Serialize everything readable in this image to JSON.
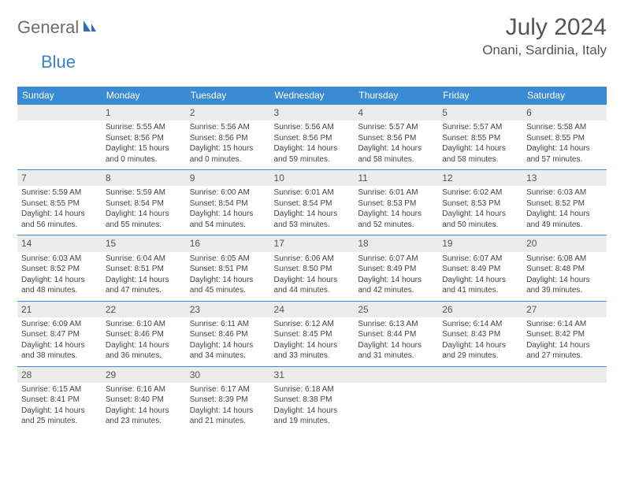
{
  "logo": {
    "gray": "General",
    "blue": "Blue"
  },
  "title": "July 2024",
  "location": "Onani, Sardinia, Italy",
  "colors": {
    "header_bg": "#3b8bd4",
    "header_text": "#ffffff",
    "daynum_bg": "#ececec",
    "daynum_border": "#3b8bd4",
    "logo_gray": "#6b6b6b",
    "logo_blue": "#3b7fc4",
    "body_text": "#444444"
  },
  "day_headers": [
    "Sunday",
    "Monday",
    "Tuesday",
    "Wednesday",
    "Thursday",
    "Friday",
    "Saturday"
  ],
  "weeks": [
    [
      null,
      {
        "n": "1",
        "sr": "5:55 AM",
        "ss": "8:56 PM",
        "dl": "15 hours and 0 minutes."
      },
      {
        "n": "2",
        "sr": "5:56 AM",
        "ss": "8:56 PM",
        "dl": "15 hours and 0 minutes."
      },
      {
        "n": "3",
        "sr": "5:56 AM",
        "ss": "8:56 PM",
        "dl": "14 hours and 59 minutes."
      },
      {
        "n": "4",
        "sr": "5:57 AM",
        "ss": "8:56 PM",
        "dl": "14 hours and 58 minutes."
      },
      {
        "n": "5",
        "sr": "5:57 AM",
        "ss": "8:55 PM",
        "dl": "14 hours and 58 minutes."
      },
      {
        "n": "6",
        "sr": "5:58 AM",
        "ss": "8:55 PM",
        "dl": "14 hours and 57 minutes."
      }
    ],
    [
      {
        "n": "7",
        "sr": "5:59 AM",
        "ss": "8:55 PM",
        "dl": "14 hours and 56 minutes."
      },
      {
        "n": "8",
        "sr": "5:59 AM",
        "ss": "8:54 PM",
        "dl": "14 hours and 55 minutes."
      },
      {
        "n": "9",
        "sr": "6:00 AM",
        "ss": "8:54 PM",
        "dl": "14 hours and 54 minutes."
      },
      {
        "n": "10",
        "sr": "6:01 AM",
        "ss": "8:54 PM",
        "dl": "14 hours and 53 minutes."
      },
      {
        "n": "11",
        "sr": "6:01 AM",
        "ss": "8:53 PM",
        "dl": "14 hours and 52 minutes."
      },
      {
        "n": "12",
        "sr": "6:02 AM",
        "ss": "8:53 PM",
        "dl": "14 hours and 50 minutes."
      },
      {
        "n": "13",
        "sr": "6:03 AM",
        "ss": "8:52 PM",
        "dl": "14 hours and 49 minutes."
      }
    ],
    [
      {
        "n": "14",
        "sr": "6:03 AM",
        "ss": "8:52 PM",
        "dl": "14 hours and 48 minutes."
      },
      {
        "n": "15",
        "sr": "6:04 AM",
        "ss": "8:51 PM",
        "dl": "14 hours and 47 minutes."
      },
      {
        "n": "16",
        "sr": "6:05 AM",
        "ss": "8:51 PM",
        "dl": "14 hours and 45 minutes."
      },
      {
        "n": "17",
        "sr": "6:06 AM",
        "ss": "8:50 PM",
        "dl": "14 hours and 44 minutes."
      },
      {
        "n": "18",
        "sr": "6:07 AM",
        "ss": "8:49 PM",
        "dl": "14 hours and 42 minutes."
      },
      {
        "n": "19",
        "sr": "6:07 AM",
        "ss": "8:49 PM",
        "dl": "14 hours and 41 minutes."
      },
      {
        "n": "20",
        "sr": "6:08 AM",
        "ss": "8:48 PM",
        "dl": "14 hours and 39 minutes."
      }
    ],
    [
      {
        "n": "21",
        "sr": "6:09 AM",
        "ss": "8:47 PM",
        "dl": "14 hours and 38 minutes."
      },
      {
        "n": "22",
        "sr": "6:10 AM",
        "ss": "8:46 PM",
        "dl": "14 hours and 36 minutes."
      },
      {
        "n": "23",
        "sr": "6:11 AM",
        "ss": "8:46 PM",
        "dl": "14 hours and 34 minutes."
      },
      {
        "n": "24",
        "sr": "6:12 AM",
        "ss": "8:45 PM",
        "dl": "14 hours and 33 minutes."
      },
      {
        "n": "25",
        "sr": "6:13 AM",
        "ss": "8:44 PM",
        "dl": "14 hours and 31 minutes."
      },
      {
        "n": "26",
        "sr": "6:14 AM",
        "ss": "8:43 PM",
        "dl": "14 hours and 29 minutes."
      },
      {
        "n": "27",
        "sr": "6:14 AM",
        "ss": "8:42 PM",
        "dl": "14 hours and 27 minutes."
      }
    ],
    [
      {
        "n": "28",
        "sr": "6:15 AM",
        "ss": "8:41 PM",
        "dl": "14 hours and 25 minutes."
      },
      {
        "n": "29",
        "sr": "6:16 AM",
        "ss": "8:40 PM",
        "dl": "14 hours and 23 minutes."
      },
      {
        "n": "30",
        "sr": "6:17 AM",
        "ss": "8:39 PM",
        "dl": "14 hours and 21 minutes."
      },
      {
        "n": "31",
        "sr": "6:18 AM",
        "ss": "8:38 PM",
        "dl": "14 hours and 19 minutes."
      },
      null,
      null,
      null
    ]
  ],
  "labels": {
    "sunrise": "Sunrise:",
    "sunset": "Sunset:",
    "daylight": "Daylight:"
  }
}
